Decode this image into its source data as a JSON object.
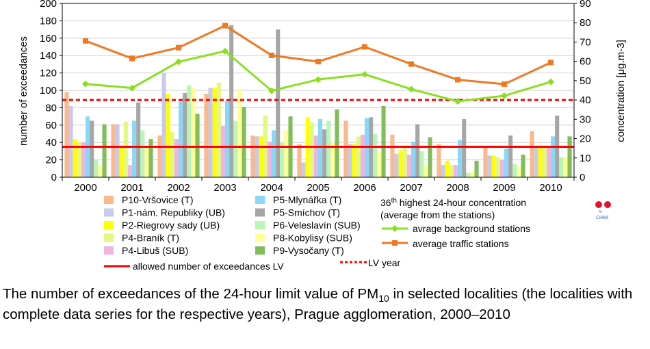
{
  "chart_data": {
    "type": "bar",
    "title": "",
    "xlabel": "",
    "ylabel": "number of exceedances",
    "y2label": "concentration [μg.m-3]",
    "ylim": [
      0,
      200
    ],
    "y2lim": [
      0,
      90
    ],
    "yticks": [
      0,
      20,
      40,
      60,
      80,
      100,
      120,
      140,
      160,
      180,
      200
    ],
    "y2ticks": [
      0,
      10,
      20,
      30,
      40,
      50,
      60,
      70,
      80,
      90
    ],
    "categories": [
      "2000",
      "2001",
      "2002",
      "2003",
      "2004",
      "2005",
      "2006",
      "2007",
      "2008",
      "2009",
      "2010"
    ],
    "series": [
      {
        "name": "P10-Vršovice (T)",
        "color": "#f9b98c",
        "values": [
          98,
          61,
          48,
          96,
          48,
          38,
          65,
          49,
          38,
          35,
          53
        ]
      },
      {
        "name": "P1-nám. Republiky (UB)",
        "color": "#c9c9ef",
        "values": [
          82,
          61,
          120,
          103,
          47,
          17,
          38,
          27,
          14,
          25,
          35
        ]
      },
      {
        "name": "P2-Riegrovy sady (UB)",
        "color": "#ffff00",
        "values": [
          44,
          36,
          96,
          103,
          47,
          69,
          38,
          31,
          19,
          25,
          34
        ]
      },
      {
        "name": "P4-Braník (T)",
        "color": "#e4f77f",
        "values": [
          40,
          64,
          52,
          109,
          71,
          63,
          47,
          34,
          14,
          23,
          36
        ]
      },
      {
        "name": "P4-Libuš (SUB)",
        "color": "#f0b4e0",
        "values": [
          40,
          14,
          44,
          59,
          41,
          48,
          49,
          26,
          14,
          20,
          34
        ]
      },
      {
        "name": "P5-Mlynářka (T)",
        "color": "#89d8f8",
        "values": [
          70,
          65,
          87,
          88,
          54,
          67,
          68,
          41,
          43,
          33,
          47
        ]
      },
      {
        "name": "P5-Smíchov (T)",
        "color": "#a6a6a6",
        "values": [
          65,
          86,
          97,
          175,
          170,
          55,
          69,
          61,
          67,
          48,
          71
        ]
      },
      {
        "name": "P6-Veleslavín (SUB)",
        "color": "#b8f5b6",
        "values": [
          20,
          54,
          106,
          65,
          40,
          65,
          50,
          30,
          5,
          15,
          23
        ]
      },
      {
        "name": "P8-Kobylisy (SUB)",
        "color": "#ffff99",
        "values": [
          14,
          36,
          103,
          102,
          54,
          40,
          29,
          13,
          6,
          13,
          23
        ]
      },
      {
        "name": "P9-Vysočany (T)",
        "color": "#82bd5c",
        "values": [
          61,
          44,
          73,
          81,
          70,
          78,
          82,
          46,
          19,
          26,
          47
        ]
      }
    ],
    "lines": [
      {
        "name": "avrage background stations",
        "color": "#88e020",
        "marker": "diamond",
        "values": [
          48.3,
          46.2,
          59.8,
          65.3,
          44.8,
          50.6,
          53.3,
          45.6,
          39.3,
          42.2,
          49.4
        ]
      },
      {
        "name": "average traffic stations",
        "color": "#f07820",
        "marker": "square",
        "values": [
          70.6,
          61.5,
          67.1,
          78.5,
          63.1,
          59.9,
          67.5,
          58.6,
          50.5,
          48.2,
          59.4
        ]
      }
    ],
    "reference_lines": [
      {
        "name": "allowed number of exceedances LV",
        "value": 35,
        "axis": "left",
        "style": "solid",
        "color": "#ff0000"
      },
      {
        "name": "LV year",
        "value": 40,
        "axis": "right",
        "style": "dashed",
        "color": "#ff0000"
      }
    ],
    "legend_header_line1": "highest 24-hour concentration",
    "legend_header_sup": "th",
    "legend_header_num": "36",
    "legend_header_line2": "(average from the stations)"
  },
  "logo": {
    "text": "CHMI"
  },
  "caption": {
    "part1": "The number of exceedances of the 24-hour limit value of PM",
    "sub": "10",
    "part2": " in selected localities (the localities with complete data series for the respective years), Prague agglomeration, 2000–2010"
  }
}
